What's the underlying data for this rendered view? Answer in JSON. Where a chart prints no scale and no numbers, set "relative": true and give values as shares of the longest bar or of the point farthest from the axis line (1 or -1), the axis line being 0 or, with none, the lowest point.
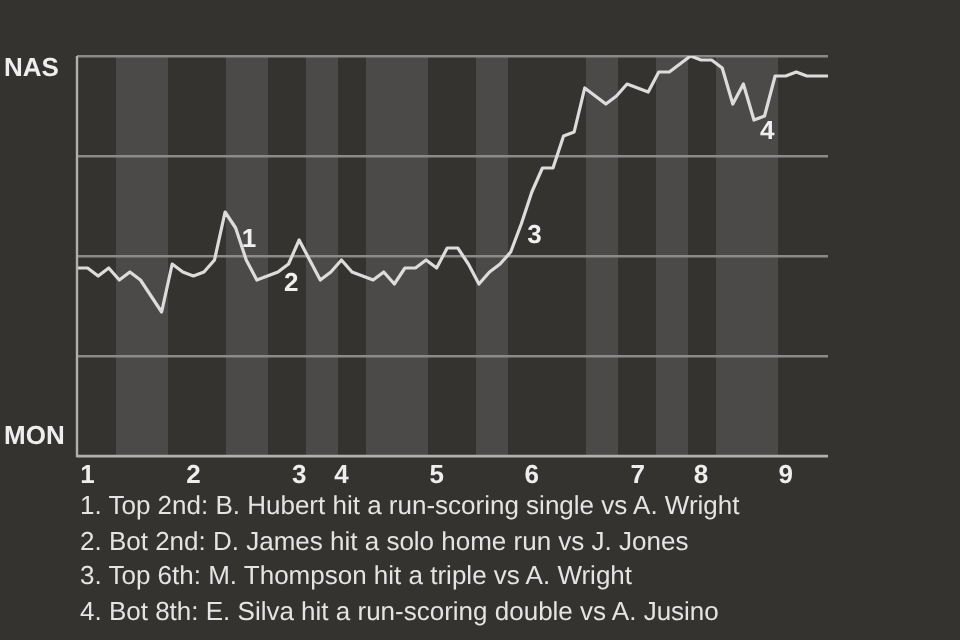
{
  "chart_data": {
    "type": "line",
    "relative": true,
    "grid": "y",
    "marker": "none",
    "categories": [
      null,
      "1",
      null,
      null,
      null,
      null,
      null,
      null,
      null,
      null,
      null,
      "2",
      null,
      null,
      null,
      null,
      null,
      null,
      null,
      null,
      null,
      "3",
      null,
      null,
      null,
      "4",
      null,
      null,
      null,
      null,
      null,
      null,
      null,
      null,
      "5",
      null,
      null,
      null,
      null,
      null,
      null,
      null,
      null,
      "6",
      null,
      null,
      null,
      null,
      null,
      null,
      null,
      null,
      null,
      "7",
      null,
      null,
      null,
      null,
      null,
      "8",
      null,
      null,
      null,
      null,
      null,
      null,
      null,
      "9",
      null,
      null,
      null,
      null
    ],
    "series": [
      {
        "color": "#dcdcdc",
        "values": [
          0.47,
          0.47,
          0.45,
          0.47,
          0.44,
          0.46,
          0.44,
          0.4,
          0.36,
          0.48,
          0.46,
          0.45,
          0.46,
          0.49,
          0.61,
          0.57,
          0.49,
          0.44,
          0.45,
          0.46,
          0.48,
          0.54,
          0.49,
          0.44,
          0.46,
          0.49,
          0.46,
          0.45,
          0.44,
          0.46,
          0.43,
          0.47,
          0.47,
          0.49,
          0.47,
          0.52,
          0.52,
          0.48,
          0.43,
          0.46,
          0.48,
          0.51,
          0.58,
          0.66,
          0.72,
          0.72,
          0.8,
          0.81,
          0.92,
          0.9,
          0.88,
          0.9,
          0.93,
          0.92,
          0.91,
          0.96,
          0.96,
          0.98,
          1,
          0.99,
          0.99,
          0.97,
          0.88,
          0.93,
          0.84,
          0.85,
          0.95,
          0.95,
          0.96,
          0.95,
          0.95,
          0.95
        ]
      }
    ],
    "annotations": [
      "NAS",
      "MON",
      "1",
      "2",
      "3",
      "4",
      "1. Top 2nd: B. Hubert hit a run-scoring single vs A. Wright",
      "2. Bot 2nd: D. James hit a solo home run vs J. Jones",
      "3. Top 6th: M. Thompson hit a triple vs A. Wright",
      "4. Bot 8th: E. Silva hit a run-scoring double vs A. Jusino"
    ]
  }
}
